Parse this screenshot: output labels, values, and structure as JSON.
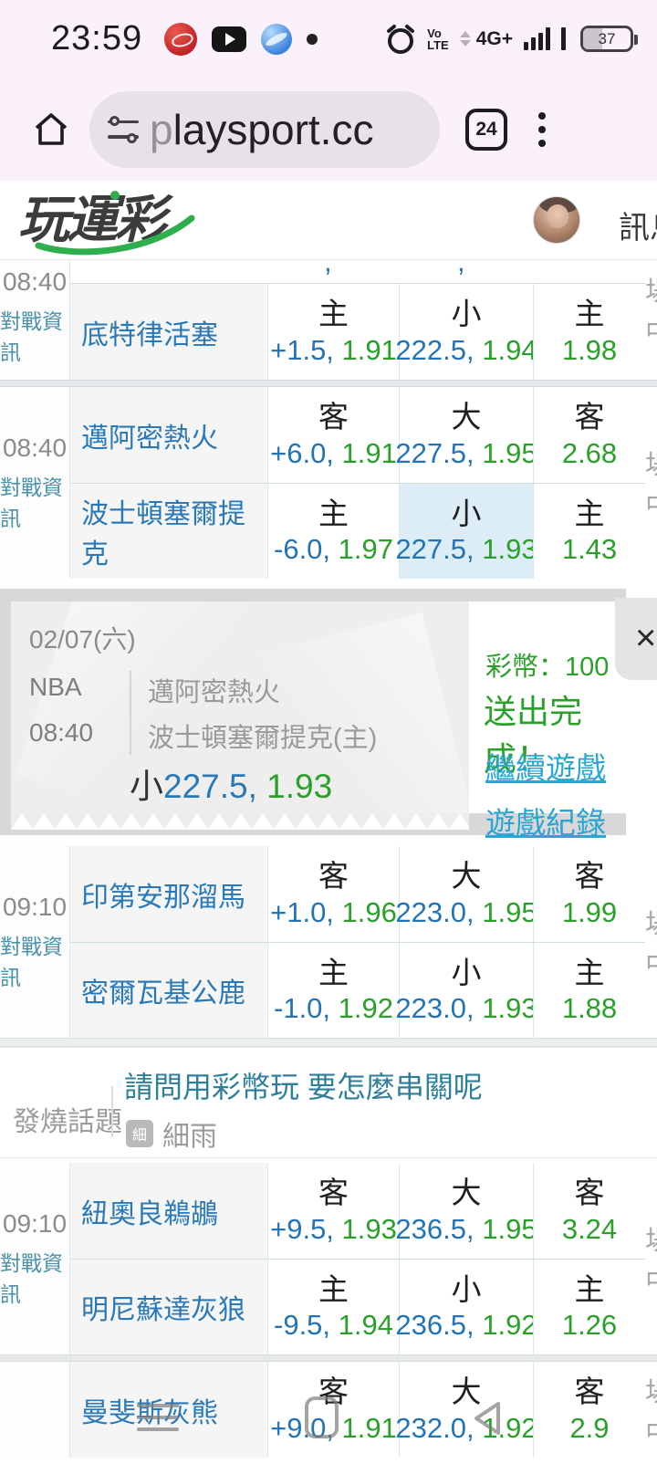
{
  "status_bar": {
    "time": "23:59",
    "volte_top": "Vo",
    "volte_bottom": "LTE",
    "network": "4G+",
    "battery_percent": "37",
    "icons": [
      "app-notification-icon",
      "youtube-icon",
      "browser-sphere-icon",
      "dot-icon",
      "alarm-icon",
      "signal-bars-icon",
      "battery-icon"
    ]
  },
  "browser": {
    "url": "playsport.cc",
    "url_first_char": "p",
    "url_rest": "laysport.cc",
    "tab_count": "24",
    "icons": [
      "home-icon",
      "tune-icon",
      "tab-switcher-icon",
      "kebab-menu-icon"
    ]
  },
  "site_header": {
    "logo": "玩運彩",
    "right_link": "訊息"
  },
  "clipped_col_char": "場中",
  "games": [
    {
      "time": "08:40",
      "info_label": "對戰資訊",
      "partial_fragments": [
        ",",
        ","
      ],
      "rows": [
        {
          "team": "底特律活塞",
          "cells": [
            {
              "side": "主",
              "point": "+1.5,",
              "odds": "1.91",
              "highlight": false
            },
            {
              "side": "小",
              "point": "222.5,",
              "odds": "1.94",
              "highlight": false
            },
            {
              "side": "主",
              "point": "",
              "odds": "1.98",
              "highlight": false
            }
          ]
        }
      ]
    },
    {
      "time": "08:40",
      "info_label": "對戰資訊",
      "rows": [
        {
          "team": "邁阿密熱火",
          "cells": [
            {
              "side": "客",
              "point": "+6.0,",
              "odds": "1.91",
              "highlight": false
            },
            {
              "side": "大",
              "point": "227.5,",
              "odds": "1.95",
              "highlight": false
            },
            {
              "side": "客",
              "point": "",
              "odds": "2.68",
              "highlight": false
            }
          ]
        },
        {
          "team": "波士頓塞爾提克",
          "cells": [
            {
              "side": "主",
              "point": "-6.0,",
              "odds": "1.97",
              "highlight": false
            },
            {
              "side": "小",
              "point": "227.5,",
              "odds": "1.93",
              "highlight": true
            },
            {
              "side": "主",
              "point": "",
              "odds": "1.43",
              "highlight": false
            }
          ]
        }
      ]
    },
    {
      "time": "09:10",
      "info_label": "對戰資訊",
      "rows": [
        {
          "team": "印第安那溜馬",
          "cells": [
            {
              "side": "客",
              "point": "+1.0,",
              "odds": "1.96",
              "highlight": false
            },
            {
              "side": "大",
              "point": "223.0,",
              "odds": "1.95",
              "highlight": false
            },
            {
              "side": "客",
              "point": "",
              "odds": "1.99",
              "highlight": false
            }
          ]
        },
        {
          "team": "密爾瓦基公鹿",
          "cells": [
            {
              "side": "主",
              "point": "-1.0,",
              "odds": "1.92",
              "highlight": false
            },
            {
              "side": "小",
              "point": "223.0,",
              "odds": "1.93",
              "highlight": false
            },
            {
              "side": "主",
              "point": "",
              "odds": "1.88",
              "highlight": false
            }
          ]
        }
      ]
    },
    {
      "time": "09:10",
      "info_label": "對戰資訊",
      "rows": [
        {
          "team": "紐奧良鵜鶘",
          "cells": [
            {
              "side": "客",
              "point": "+9.5,",
              "odds": "1.93",
              "highlight": false
            },
            {
              "side": "大",
              "point": "236.5,",
              "odds": "1.95",
              "highlight": false
            },
            {
              "side": "客",
              "point": "",
              "odds": "3.24",
              "highlight": false
            }
          ]
        },
        {
          "team": "明尼蘇達灰狼",
          "cells": [
            {
              "side": "主",
              "point": "-9.5,",
              "odds": "1.94",
              "highlight": false
            },
            {
              "side": "小",
              "point": "236.5,",
              "odds": "1.92",
              "highlight": false
            },
            {
              "side": "主",
              "point": "",
              "odds": "1.26",
              "highlight": false
            }
          ]
        }
      ]
    },
    {
      "time": "",
      "info_label": "",
      "rows": [
        {
          "team": "曼斐斯灰熊",
          "cells": [
            {
              "side": "客",
              "point": "+9.0,",
              "odds": "1.91",
              "highlight": false
            },
            {
              "side": "大",
              "point": "232.0,",
              "odds": "1.92",
              "highlight": false
            },
            {
              "side": "客",
              "point": "",
              "odds": "2.9",
              "highlight": false
            }
          ]
        }
      ]
    }
  ],
  "bet_slip": {
    "date": "02/07(六)",
    "league": "NBA",
    "time": "08:40",
    "away_team": "邁阿密熱火",
    "home_team": "波士頓塞爾提克(主)",
    "pick_side": "小",
    "pick_point": "227.5,",
    "pick_odds": " 1.93",
    "coins": "彩幣：100",
    "status": "送出完成！",
    "link_continue": "繼續遊戲",
    "link_history": "遊戲紀錄",
    "close": "×"
  },
  "hot_topic": {
    "label": "發燒話題",
    "title": "請問用彩幣玩 要怎麼串關呢",
    "badge": "細",
    "author": "細雨"
  },
  "colors": {
    "chrome_bg": "#fbf1fa",
    "team_blue": "#2979b9",
    "point_blue": "#2374b6",
    "odds_green": "#2aa02a",
    "link_teal": "#2aa6d4",
    "highlight_cell": "#dcedf8"
  }
}
